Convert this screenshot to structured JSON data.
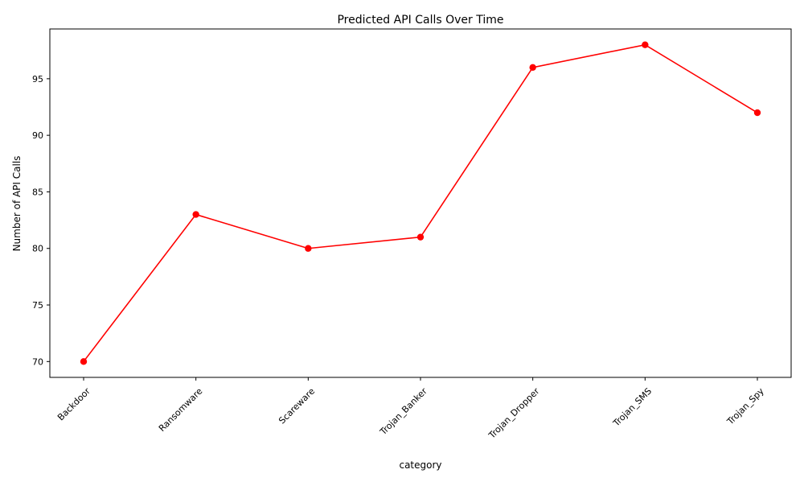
{
  "chart_data": {
    "type": "line",
    "title": "Predicted API Calls Over Time",
    "xlabel": "category",
    "ylabel": "Number of API Calls",
    "categories": [
      "Backdoor",
      "Ransomware",
      "Scareware",
      "Trojan_Banker",
      "Trojan_Dropper",
      "Trojan_SMS",
      "Trojan_Spy"
    ],
    "series": [
      {
        "values": [
          70,
          83,
          80,
          81,
          96,
          98,
          92
        ],
        "color": "#ff0000",
        "marker": "circle"
      }
    ],
    "ylim": [
      68.6,
      99.4
    ],
    "yticks": [
      70,
      75,
      80,
      85,
      90,
      95
    ],
    "grid": false,
    "legend": "none"
  }
}
